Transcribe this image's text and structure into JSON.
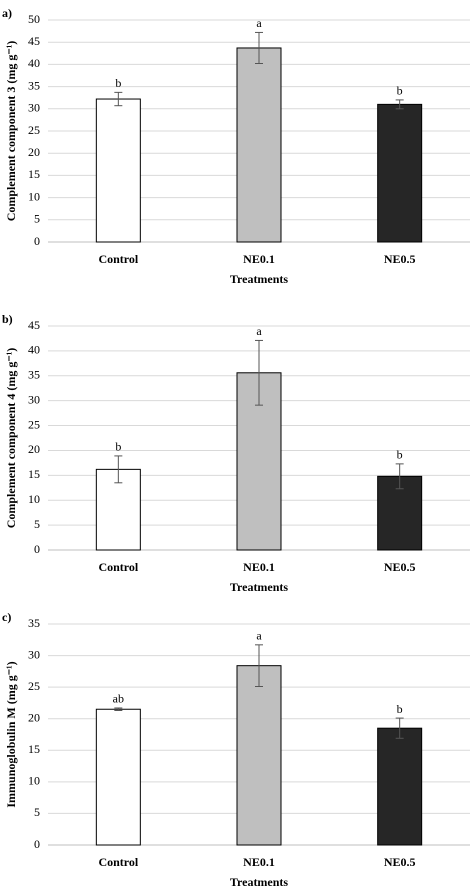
{
  "chart_data": [
    {
      "type": "bar",
      "panel": "a)",
      "ylabel": "Complement component 3 (mg g⁻¹)",
      "xlabel": "Treatments",
      "categories": [
        "Control",
        "NE0.1",
        "NE0.5"
      ],
      "values": [
        32.2,
        43.7,
        31.0
      ],
      "errors": [
        1.5,
        3.5,
        1.0
      ],
      "letters": [
        "b",
        "a",
        "b"
      ],
      "colors": [
        "#ffffff",
        "#bfbfbf",
        "#262626"
      ],
      "ylim": [
        0,
        50
      ],
      "yticks": [
        0,
        5,
        10,
        15,
        20,
        25,
        30,
        35,
        40,
        45,
        50
      ],
      "grid": true
    },
    {
      "type": "bar",
      "panel": "b)",
      "ylabel": "Complement component 4 (mg g⁻¹)",
      "xlabel": "Treatments",
      "categories": [
        "Control",
        "NE0.1",
        "NE0.5"
      ],
      "values": [
        16.2,
        35.6,
        14.8
      ],
      "errors": [
        2.7,
        6.5,
        2.5
      ],
      "letters": [
        "b",
        "a",
        "b"
      ],
      "colors": [
        "#ffffff",
        "#bfbfbf",
        "#262626"
      ],
      "ylim": [
        0,
        45
      ],
      "yticks": [
        0,
        5,
        10,
        15,
        20,
        25,
        30,
        35,
        40,
        45
      ],
      "grid": true
    },
    {
      "type": "bar",
      "panel": "c)",
      "ylabel": "Immunoglobulin M (mg g⁻¹)",
      "xlabel": "Treatments",
      "categories": [
        "Control",
        "NE0.1",
        "NE0.5"
      ],
      "values": [
        21.5,
        28.4,
        18.5
      ],
      "errors": [
        0.2,
        3.3,
        1.6
      ],
      "letters": [
        "ab",
        "a",
        "b"
      ],
      "colors": [
        "#ffffff",
        "#bfbfbf",
        "#262626"
      ],
      "ylim": [
        0,
        35
      ],
      "yticks": [
        0,
        5,
        10,
        15,
        20,
        25,
        30,
        35
      ],
      "grid": true
    }
  ]
}
